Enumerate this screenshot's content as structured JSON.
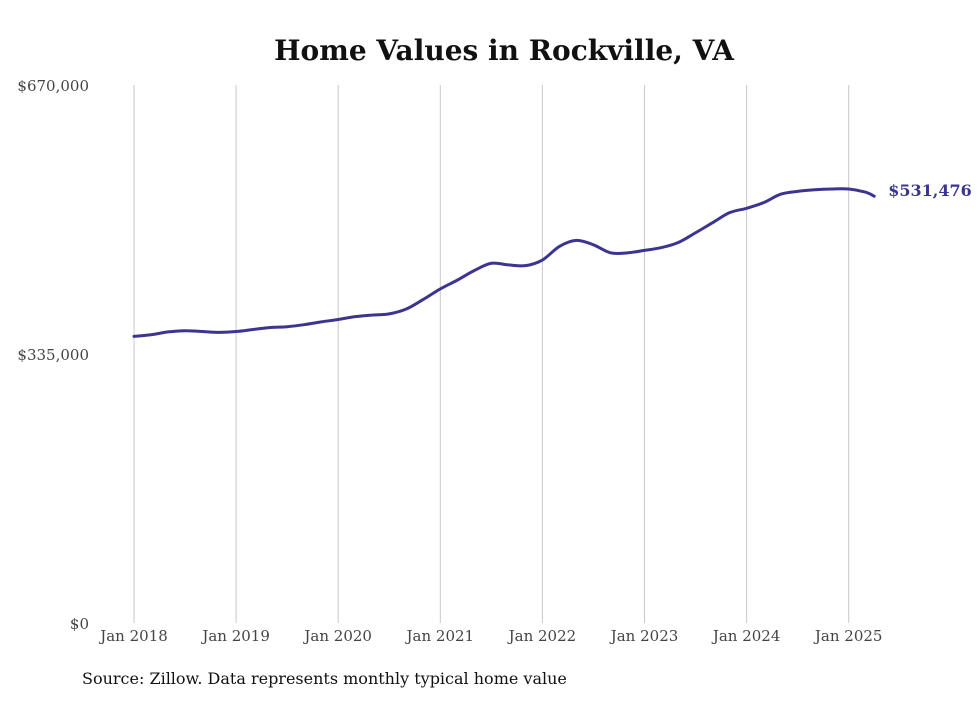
{
  "chart_data": {
    "type": "line",
    "title": "Home Values in Rockville, VA",
    "xlabel": "",
    "ylabel": "",
    "ylim": [
      0,
      670000
    ],
    "y_ticks": [
      "$0",
      "$335,000",
      "$670,000"
    ],
    "y_tick_values": [
      0,
      335000,
      670000
    ],
    "x_ticks": [
      "Jan 2018",
      "Jan 2019",
      "Jan 2020",
      "Jan 2021",
      "Jan 2022",
      "Jan 2023",
      "Jan 2024",
      "Jan 2025"
    ],
    "x_tick_values": [
      "2018-01",
      "2019-01",
      "2020-01",
      "2021-01",
      "2022-01",
      "2023-01",
      "2024-01",
      "2025-01"
    ],
    "xlim": [
      "2018-01",
      "2025-04"
    ],
    "grid": "vertical",
    "series": [
      {
        "color": "#3b3591",
        "end_label": "$531,476",
        "points": [
          [
            "2018-01",
            357000
          ],
          [
            "2018-03",
            359000
          ],
          [
            "2018-05",
            362500
          ],
          [
            "2018-07",
            364000
          ],
          [
            "2018-09",
            363000
          ],
          [
            "2018-11",
            362000
          ],
          [
            "2019-01",
            363000
          ],
          [
            "2019-03",
            365500
          ],
          [
            "2019-05",
            368000
          ],
          [
            "2019-07",
            369000
          ],
          [
            "2019-09",
            371500
          ],
          [
            "2019-11",
            375000
          ],
          [
            "2020-01",
            378000
          ],
          [
            "2020-03",
            381500
          ],
          [
            "2020-05",
            383500
          ],
          [
            "2020-07",
            385000
          ],
          [
            "2020-09",
            391000
          ],
          [
            "2020-11",
            403000
          ],
          [
            "2021-01",
            416000
          ],
          [
            "2021-03",
            427000
          ],
          [
            "2021-05",
            439000
          ],
          [
            "2021-07",
            448000
          ],
          [
            "2021-09",
            446000
          ],
          [
            "2021-11",
            445000
          ],
          [
            "2022-01",
            452000
          ],
          [
            "2022-03",
            469000
          ],
          [
            "2022-05",
            476500
          ],
          [
            "2022-07",
            471000
          ],
          [
            "2022-09",
            461000
          ],
          [
            "2022-11",
            461000
          ],
          [
            "2023-01",
            464000
          ],
          [
            "2023-03",
            467500
          ],
          [
            "2023-05",
            474000
          ],
          [
            "2023-07",
            486000
          ],
          [
            "2023-09",
            498500
          ],
          [
            "2023-11",
            511000
          ],
          [
            "2024-01",
            516500
          ],
          [
            "2024-03",
            523500
          ],
          [
            "2024-05",
            534000
          ],
          [
            "2024-07",
            537500
          ],
          [
            "2024-09",
            539500
          ],
          [
            "2024-11",
            540500
          ],
          [
            "2025-01",
            540500
          ],
          [
            "2025-03",
            536500
          ],
          [
            "2025-04",
            531476
          ]
        ]
      }
    ]
  },
  "source": "Source: Zillow. Data represents monthly typical home value"
}
